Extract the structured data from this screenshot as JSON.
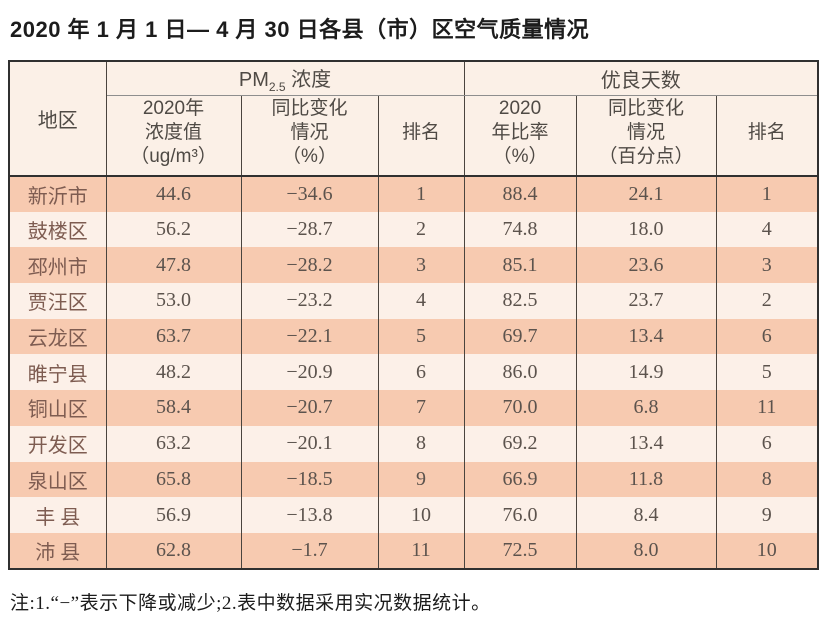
{
  "title": "2020 年 1 月 1 日— 4 月 30 日各县（市）区空气质量情况",
  "footnote": "注:1.“−”表示下降或减少;2.表中数据采用实况数据统计。",
  "colors": {
    "stripe_dark": "#f7cab0",
    "stripe_light": "#fcf0e8",
    "header_bg": "#fbf0e7",
    "border_dark": "#303030",
    "border_inner": "#4a443e"
  },
  "table": {
    "headers": {
      "region": "地区",
      "pm_prefix": "PM",
      "pm_sub": "2.5",
      "pm_suffix": " 浓度",
      "good_days_group": "优良天数",
      "pm_value": [
        "2020年",
        "浓度值",
        "（ug/m³）"
      ],
      "pm_change": [
        "同比变化",
        "情况",
        "（%）"
      ],
      "pm_rank": "排名",
      "good_rate": [
        "2020",
        "年比率",
        "（%）"
      ],
      "good_change": [
        "同比变化",
        "情况",
        "（百分点）"
      ],
      "good_rank": "排名"
    },
    "rows": [
      {
        "region": "新沂市",
        "pm_value": "44.6",
        "pm_change": "−34.6",
        "pm_rank": "1",
        "good_rate": "88.4",
        "good_change": "24.1",
        "good_rank": "1"
      },
      {
        "region": "鼓楼区",
        "pm_value": "56.2",
        "pm_change": "−28.7",
        "pm_rank": "2",
        "good_rate": "74.8",
        "good_change": "18.0",
        "good_rank": "4"
      },
      {
        "region": "邳州市",
        "pm_value": "47.8",
        "pm_change": "−28.2",
        "pm_rank": "3",
        "good_rate": "85.1",
        "good_change": "23.6",
        "good_rank": "3"
      },
      {
        "region": "贾汪区",
        "pm_value": "53.0",
        "pm_change": "−23.2",
        "pm_rank": "4",
        "good_rate": "82.5",
        "good_change": "23.7",
        "good_rank": "2"
      },
      {
        "region": "云龙区",
        "pm_value": "63.7",
        "pm_change": "−22.1",
        "pm_rank": "5",
        "good_rate": "69.7",
        "good_change": "13.4",
        "good_rank": "6"
      },
      {
        "region": "睢宁县",
        "pm_value": "48.2",
        "pm_change": "−20.9",
        "pm_rank": "6",
        "good_rate": "86.0",
        "good_change": "14.9",
        "good_rank": "5"
      },
      {
        "region": "铜山区",
        "pm_value": "58.4",
        "pm_change": "−20.7",
        "pm_rank": "7",
        "good_rate": "70.0",
        "good_change": "6.8",
        "good_rank": "11"
      },
      {
        "region": "开发区",
        "pm_value": "63.2",
        "pm_change": "−20.1",
        "pm_rank": "8",
        "good_rate": "69.2",
        "good_change": "13.4",
        "good_rank": "6"
      },
      {
        "region": "泉山区",
        "pm_value": "65.8",
        "pm_change": "−18.5",
        "pm_rank": "9",
        "good_rate": "66.9",
        "good_change": "11.8",
        "good_rank": "8"
      },
      {
        "region": "丰 县",
        "pm_value": "56.9",
        "pm_change": "−13.8",
        "pm_rank": "10",
        "good_rate": "76.0",
        "good_change": "8.4",
        "good_rank": "9"
      },
      {
        "region": "沛 县",
        "pm_value": "62.8",
        "pm_change": "−1.7",
        "pm_rank": "11",
        "good_rate": "72.5",
        "good_change": "8.0",
        "good_rank": "10"
      }
    ]
  }
}
